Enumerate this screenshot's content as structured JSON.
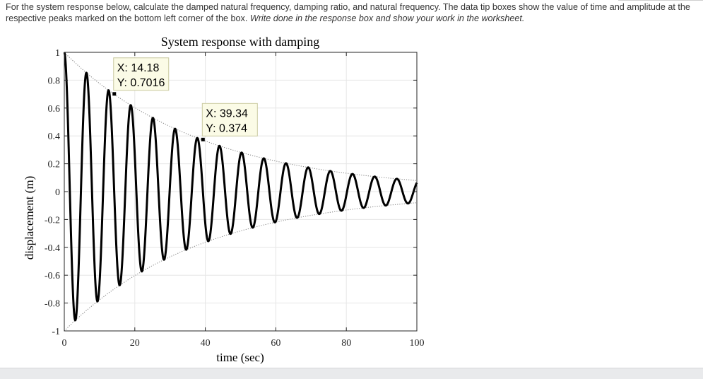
{
  "question": {
    "text": "For the system response below, calculate the damped natural frequency, damping ratio, and natural frequency. The data tip boxes show the value of time and amplitude at the respective peaks marked on the bottom left corner of the box.",
    "instruction": "Write done in the response box and show your work in the worksheet."
  },
  "chart_data": {
    "type": "line",
    "title": "System response with damping",
    "xlabel": "time (sec)",
    "ylabel": "displacement (m)",
    "xlim": [
      0,
      100
    ],
    "ylim": [
      -1,
      1
    ],
    "xticks": [
      0,
      20,
      40,
      60,
      80,
      100
    ],
    "xtick_labels": [
      "0",
      "20",
      "40",
      "60",
      "80",
      "100"
    ],
    "yticks": [
      1,
      0.8,
      0.6,
      0.4,
      0.2,
      0,
      -0.2,
      -0.4,
      -0.6,
      -0.8,
      -1
    ],
    "ytick_labels": [
      "1",
      "0.8",
      "0.6",
      "0.4",
      "0.2",
      "0",
      "-0.2",
      "-0.4",
      "-0.6",
      "-0.8",
      "-1"
    ],
    "grid": true,
    "signal": {
      "form": "exponentially decaying cosine",
      "initial_amplitude": 1,
      "period": 6.29,
      "decay_rate": 0.0253,
      "final_x": 100,
      "final_y": 0.02
    },
    "envelope": {
      "style": "dotted",
      "upper": true,
      "lower": true
    },
    "data_tips": [
      {
        "x_label": "X: 14.18",
        "y_label": "Y: 0.7016",
        "x": 14.18,
        "y": 0.7016
      },
      {
        "x_label": "X: 39.34",
        "y_label": "Y: 0.374",
        "x": 39.34,
        "y": 0.374
      }
    ]
  }
}
